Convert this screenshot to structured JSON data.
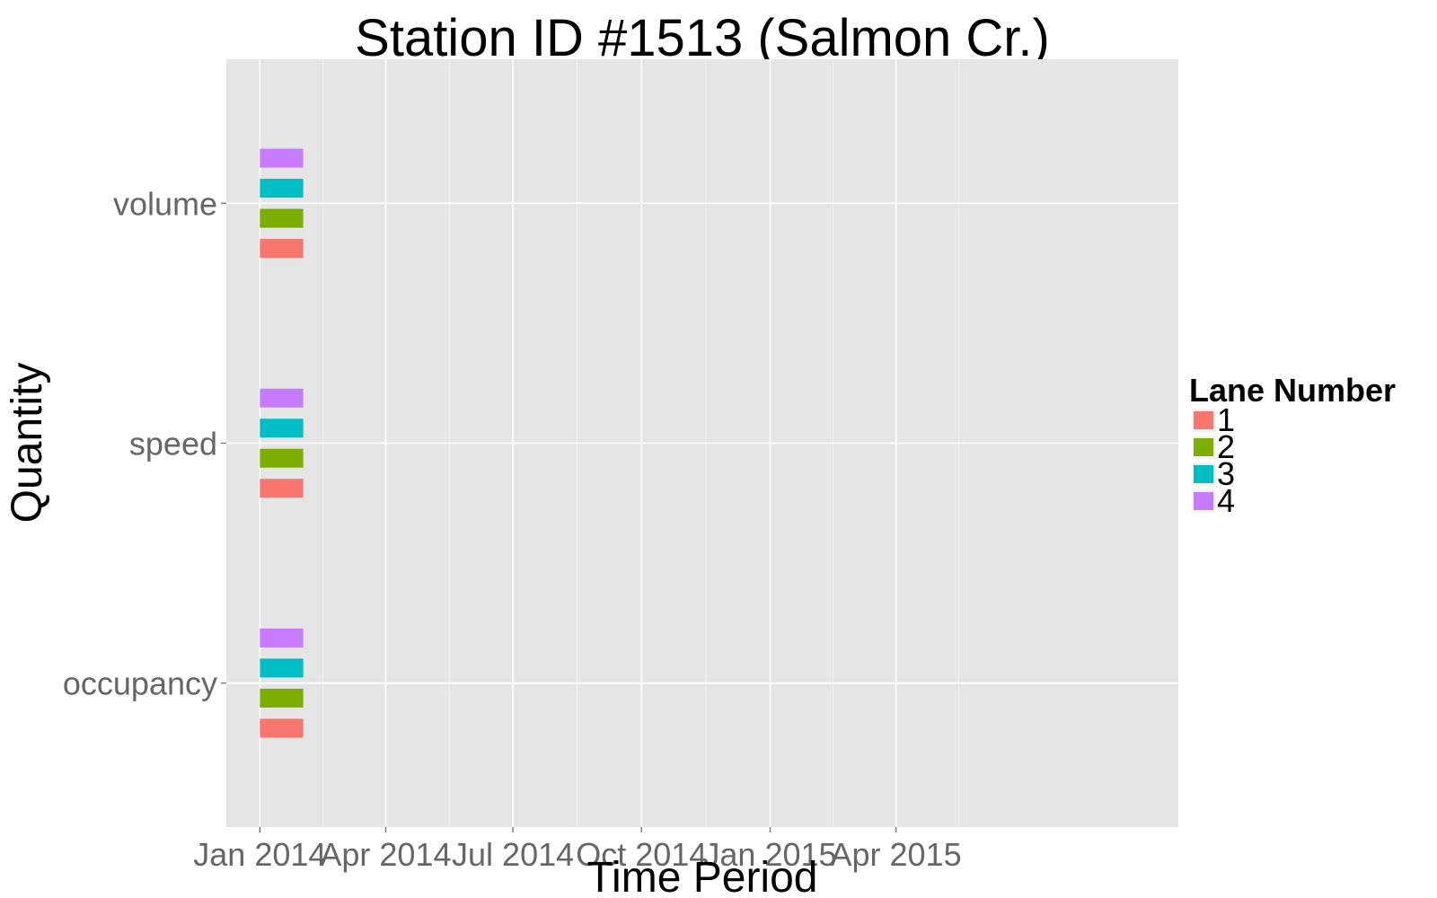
{
  "chart_data": {
    "type": "bar",
    "title": "Station ID #1513 (Salmon Cr.)",
    "xlabel": "Time Period",
    "ylabel": "Quantity",
    "x_axis_type": "date",
    "xlim": [
      "2013-12-08",
      "2015-10-20"
    ],
    "x_ticks": [
      {
        "date": "2014-01-01",
        "label": "Jan 2014"
      },
      {
        "date": "2014-04-01",
        "label": "Apr 2014"
      },
      {
        "date": "2014-07-01",
        "label": "Jul 2014"
      },
      {
        "date": "2014-10-01",
        "label": "Oct 2014"
      },
      {
        "date": "2015-01-01",
        "label": "Jan 2015"
      },
      {
        "date": "2015-04-01",
        "label": "Apr 2015"
      }
    ],
    "categories": [
      "occupancy",
      "speed",
      "volume"
    ],
    "grid": true,
    "legend": {
      "title": "Lane Number",
      "position": "right"
    },
    "series": [
      {
        "name": "1",
        "color": "#F8766D",
        "segments": [
          {
            "category": "occupancy",
            "start": "2014-01-01",
            "end": "2014-02-01"
          },
          {
            "category": "speed",
            "start": "2014-01-01",
            "end": "2014-02-01"
          },
          {
            "category": "volume",
            "start": "2014-01-01",
            "end": "2014-02-01"
          }
        ]
      },
      {
        "name": "2",
        "color": "#7CAE00",
        "segments": [
          {
            "category": "occupancy",
            "start": "2014-01-01",
            "end": "2014-02-01"
          },
          {
            "category": "speed",
            "start": "2014-01-01",
            "end": "2014-02-01"
          },
          {
            "category": "volume",
            "start": "2014-01-01",
            "end": "2014-02-01"
          }
        ]
      },
      {
        "name": "3",
        "color": "#00BFC4",
        "segments": [
          {
            "category": "occupancy",
            "start": "2014-01-01",
            "end": "2014-02-01"
          },
          {
            "category": "speed",
            "start": "2014-01-01",
            "end": "2014-02-01"
          },
          {
            "category": "volume",
            "start": "2014-01-01",
            "end": "2014-02-01"
          }
        ]
      },
      {
        "name": "4",
        "color": "#C77CFF",
        "segments": [
          {
            "category": "occupancy",
            "start": "2014-01-01",
            "end": "2014-02-01"
          },
          {
            "category": "speed",
            "start": "2014-01-01",
            "end": "2014-02-01"
          },
          {
            "category": "volume",
            "start": "2014-01-01",
            "end": "2014-02-01"
          }
        ]
      }
    ]
  },
  "colors": {
    "panel_background": "#E5E5E5",
    "grid_major": "#FFFFFF",
    "tick_text": "#666666"
  }
}
